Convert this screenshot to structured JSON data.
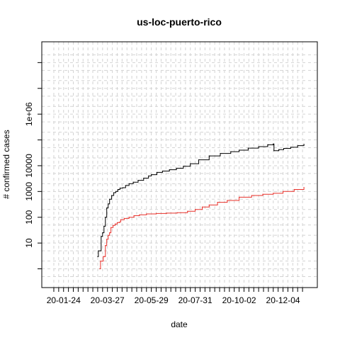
{
  "chart_data": {
    "type": "line",
    "title": "us-loc-puerto-rico",
    "xlabel": "date",
    "ylabel": "# confirmed cases",
    "x_axis": {
      "type": "date",
      "range": [
        "2020-01-08",
        "2021-01-07"
      ],
      "tick_labels": [
        {
          "date": "2020-01-24",
          "label": "20-01-24"
        },
        {
          "date": "2020-03-27",
          "label": "20-03-27"
        },
        {
          "date": "2020-05-29",
          "label": "20-05-29"
        },
        {
          "date": "2020-07-31",
          "label": "20-07-31"
        },
        {
          "date": "2020-10-02",
          "label": "20-10-02"
        },
        {
          "date": "2020-12-04",
          "label": "20-12-04"
        }
      ]
    },
    "y_axis": {
      "scale": "log",
      "range": [
        0.4,
        300000000
      ],
      "tick_labels": [
        {
          "value": 10,
          "label": "10"
        },
        {
          "value": 100,
          "label": "100"
        },
        {
          "value": 1000,
          "label": "1000"
        },
        {
          "value": 10000,
          "label": "10000"
        },
        {
          "value": 1000000,
          "label": "1e+06"
        }
      ]
    },
    "grid": true,
    "series": [
      {
        "color": "#000000",
        "points": [
          [
            "2020-03-13",
            3
          ],
          [
            "2020-03-14",
            5
          ],
          [
            "2020-03-17",
            5
          ],
          [
            "2020-03-18",
            18
          ],
          [
            "2020-03-20",
            25
          ],
          [
            "2020-03-22",
            45
          ],
          [
            "2020-03-24",
            100
          ],
          [
            "2020-03-26",
            230
          ],
          [
            "2020-03-28",
            330
          ],
          [
            "2020-03-30",
            500
          ],
          [
            "2020-04-02",
            700
          ],
          [
            "2020-04-05",
            900
          ],
          [
            "2020-04-08",
            1000
          ],
          [
            "2020-04-11",
            1200
          ],
          [
            "2020-04-14",
            1350
          ],
          [
            "2020-04-18",
            1400
          ],
          [
            "2020-04-22",
            1700
          ],
          [
            "2020-04-27",
            2000
          ],
          [
            "2020-05-03",
            2300
          ],
          [
            "2020-05-10",
            2700
          ],
          [
            "2020-05-18",
            3300
          ],
          [
            "2020-05-25",
            4000
          ],
          [
            "2020-05-29",
            4500
          ],
          [
            "2020-06-06",
            5500
          ],
          [
            "2020-06-14",
            6200
          ],
          [
            "2020-06-24",
            7000
          ],
          [
            "2020-07-04",
            8000
          ],
          [
            "2020-07-14",
            9500
          ],
          [
            "2020-07-24",
            12000
          ],
          [
            "2020-08-05",
            17000
          ],
          [
            "2020-08-20",
            24000
          ],
          [
            "2020-09-05",
            30000
          ],
          [
            "2020-09-20",
            35000
          ],
          [
            "2020-10-02",
            40000
          ],
          [
            "2020-10-15",
            48000
          ],
          [
            "2020-10-30",
            55000
          ],
          [
            "2020-11-12",
            65000
          ],
          [
            "2020-11-20",
            70000
          ],
          [
            "2020-11-21",
            38000
          ],
          [
            "2020-11-28",
            42000
          ],
          [
            "2020-12-05",
            47000
          ],
          [
            "2020-12-15",
            52000
          ],
          [
            "2020-12-25",
            60000
          ],
          [
            "2021-01-03",
            68000
          ]
        ]
      },
      {
        "color": "#e8302a",
        "points": [
          [
            "2020-03-16",
            1
          ],
          [
            "2020-03-17",
            2
          ],
          [
            "2020-03-20",
            2
          ],
          [
            "2020-03-21",
            3
          ],
          [
            "2020-03-23",
            3
          ],
          [
            "2020-03-24",
            8
          ],
          [
            "2020-03-26",
            14
          ],
          [
            "2020-03-28",
            20
          ],
          [
            "2020-03-30",
            25
          ],
          [
            "2020-04-01",
            40
          ],
          [
            "2020-04-04",
            48
          ],
          [
            "2020-04-07",
            55
          ],
          [
            "2020-04-10",
            62
          ],
          [
            "2020-04-13",
            65
          ],
          [
            "2020-04-15",
            80
          ],
          [
            "2020-04-20",
            90
          ],
          [
            "2020-04-27",
            100
          ],
          [
            "2020-05-04",
            115
          ],
          [
            "2020-05-12",
            125
          ],
          [
            "2020-05-22",
            135
          ],
          [
            "2020-06-05",
            140
          ],
          [
            "2020-06-20",
            145
          ],
          [
            "2020-07-05",
            150
          ],
          [
            "2020-07-20",
            170
          ],
          [
            "2020-07-31",
            200
          ],
          [
            "2020-08-10",
            250
          ],
          [
            "2020-08-20",
            300
          ],
          [
            "2020-09-01",
            380
          ],
          [
            "2020-09-15",
            450
          ],
          [
            "2020-10-02",
            600
          ],
          [
            "2020-10-20",
            700
          ],
          [
            "2020-11-05",
            780
          ],
          [
            "2020-11-20",
            850
          ],
          [
            "2020-12-04",
            1000
          ],
          [
            "2020-12-20",
            1200
          ],
          [
            "2021-01-03",
            1450
          ]
        ]
      }
    ]
  }
}
